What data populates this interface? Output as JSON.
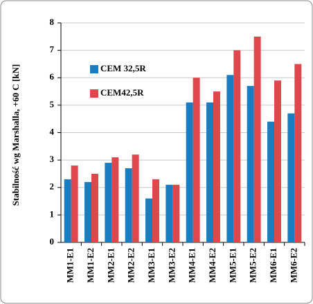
{
  "chart_data": {
    "type": "bar",
    "y_label": "Stabilność wg Marshalla, +60 C [kN]",
    "categories": [
      "MM1-E1",
      "MM1-E2",
      "MM2-E1",
      "MM2-E2",
      "MM3-E1",
      "MM3-E2",
      "MM4-E1",
      "MM4-E2",
      "MM5-E1",
      "MM5-E2",
      "MM6-E1",
      "MM6-E2"
    ],
    "series": [
      {
        "name": "CEM 32,5R",
        "color": "#1a7cc1",
        "values": [
          2.3,
          2.2,
          2.9,
          2.7,
          1.6,
          2.1,
          5.1,
          5.1,
          6.1,
          5.7,
          4.4,
          4.7
        ]
      },
      {
        "name": "CEM42,5R",
        "color": "#e0474c",
        "values": [
          2.8,
          2.5,
          3.1,
          3.2,
          2.3,
          2.1,
          6.0,
          5.5,
          7.0,
          7.5,
          5.9,
          6.5
        ]
      }
    ],
    "ylim": [
      0,
      8
    ],
    "yticks": [
      0,
      1,
      2,
      3,
      4,
      5,
      6,
      7,
      8
    ],
    "grid": true,
    "legend": "upper left"
  }
}
